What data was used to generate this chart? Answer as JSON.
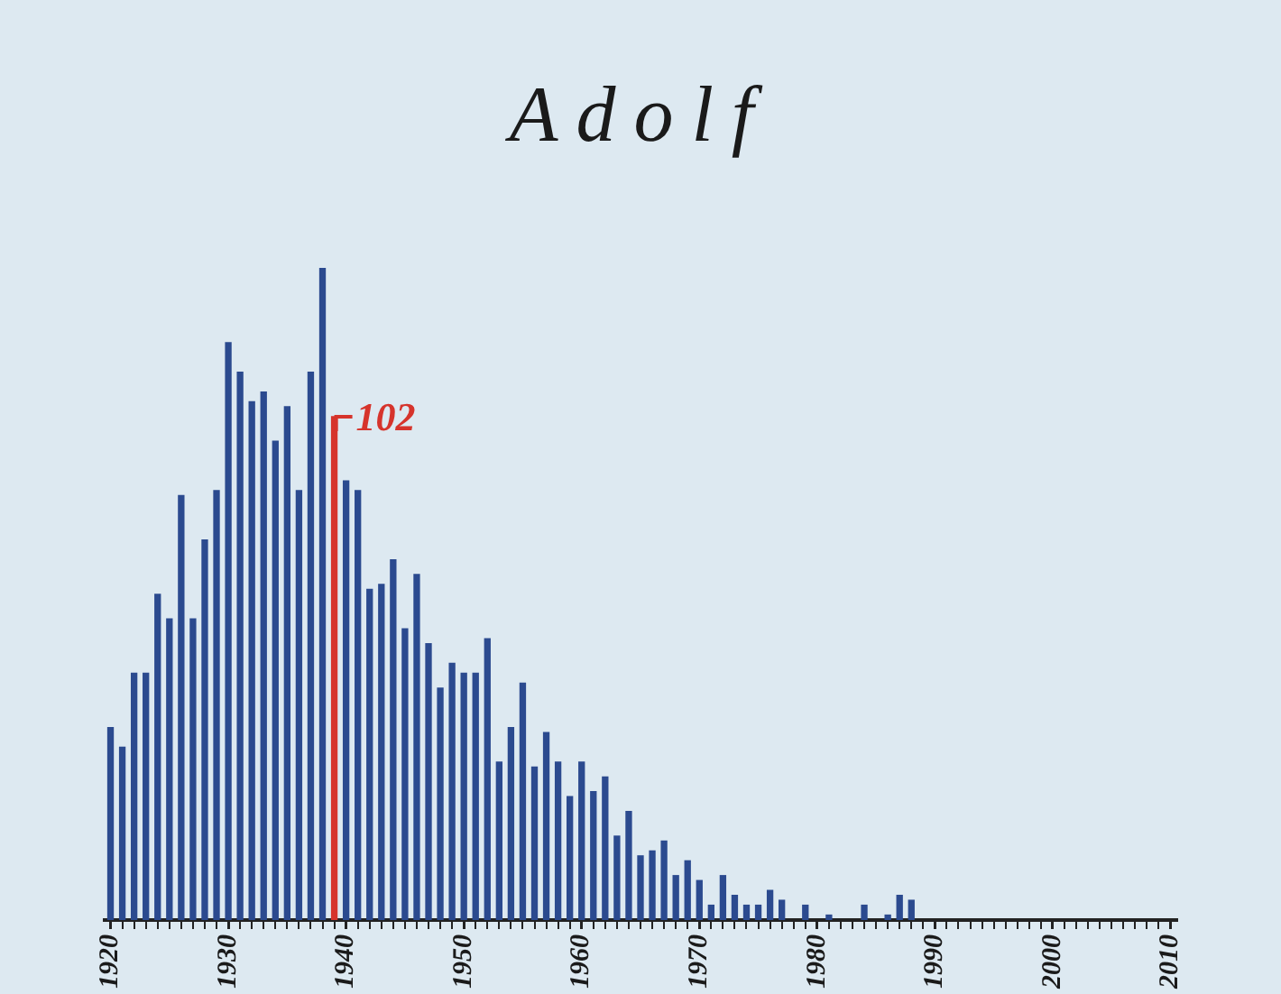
{
  "chart_data": {
    "type": "bar",
    "title": "Adolf",
    "categories": [
      "1920",
      null,
      null,
      null,
      null,
      null,
      null,
      null,
      null,
      null,
      "1930",
      null,
      null,
      null,
      null,
      null,
      null,
      null,
      null,
      null,
      "1940",
      null,
      null,
      null,
      null,
      null,
      null,
      null,
      null,
      null,
      "1950",
      null,
      null,
      null,
      null,
      null,
      null,
      null,
      null,
      null,
      "1960",
      null,
      null,
      null,
      null,
      null,
      null,
      null,
      null,
      null,
      "1970",
      null,
      null,
      null,
      null,
      null,
      null,
      null,
      null,
      null,
      "1980",
      null,
      null,
      null,
      null,
      null,
      null,
      null,
      null,
      null,
      "1990",
      null,
      null,
      null,
      null,
      null,
      null,
      null,
      null,
      null,
      "2000",
      null,
      null,
      null,
      null,
      null,
      null,
      null,
      null,
      null,
      "2010"
    ],
    "values": [
      39,
      35,
      50,
      50,
      66,
      61,
      86,
      61,
      77,
      87,
      117,
      111,
      105,
      107,
      97,
      104,
      87,
      111,
      132,
      102,
      89,
      87,
      67,
      68,
      73,
      59,
      70,
      56,
      47,
      52,
      50,
      50,
      57,
      32,
      39,
      48,
      31,
      38,
      32,
      25,
      32,
      26,
      29,
      17,
      22,
      13,
      14,
      16,
      9,
      12,
      8,
      3,
      9,
      5,
      3,
      3,
      6,
      4,
      null,
      3,
      null,
      1,
      null,
      null,
      3,
      null,
      1,
      5,
      4,
      null,
      null,
      null,
      null,
      null,
      null,
      null,
      null,
      null,
      null,
      null,
      null,
      null,
      null,
      null,
      null,
      null,
      null,
      null,
      null,
      null,
      null
    ],
    "colors": [
      "#2b4a8f",
      "#2b4a8f",
      "#2b4a8f",
      "#2b4a8f",
      "#2b4a8f",
      "#2b4a8f",
      "#2b4a8f",
      "#2b4a8f",
      "#2b4a8f",
      "#2b4a8f",
      "#2b4a8f",
      "#2b4a8f",
      "#2b4a8f",
      "#2b4a8f",
      "#2b4a8f",
      "#2b4a8f",
      "#2b4a8f",
      "#2b4a8f",
      "#2b4a8f",
      "#d6342c",
      "#2b4a8f",
      "#2b4a8f",
      "#2b4a8f",
      "#2b4a8f",
      "#2b4a8f",
      "#2b4a8f",
      "#2b4a8f",
      "#2b4a8f",
      "#2b4a8f",
      "#2b4a8f",
      "#2b4a8f",
      "#2b4a8f",
      "#2b4a8f",
      "#2b4a8f",
      "#2b4a8f",
      "#2b4a8f",
      "#2b4a8f",
      "#2b4a8f",
      "#2b4a8f",
      "#2b4a8f",
      "#2b4a8f",
      "#2b4a8f",
      "#2b4a8f",
      "#2b4a8f",
      "#2b4a8f",
      "#2b4a8f",
      "#2b4a8f",
      "#2b4a8f",
      "#2b4a8f",
      "#2b4a8f",
      "#2b4a8f",
      "#2b4a8f",
      "#2b4a8f",
      "#2b4a8f",
      "#2b4a8f",
      "#2b4a8f",
      "#2b4a8f",
      "#2b4a8f",
      "#2b4a8f",
      "#2b4a8f",
      "#2b4a8f",
      "#2b4a8f",
      "#2b4a8f",
      "#2b4a8f",
      "#2b4a8f",
      "#2b4a8f",
      "#2b4a8f",
      "#2b4a8f",
      "#2b4a8f",
      "#2b4a8f",
      "#2b4a8f",
      "#2b4a8f",
      "#2b4a8f",
      "#2b4a8f",
      "#2b4a8f",
      "#2b4a8f",
      "#2b4a8f",
      "#2b4a8f",
      "#2b4a8f",
      "#2b4a8f",
      "#2b4a8f",
      "#2b4a8f",
      "#2b4a8f",
      "#2b4a8f",
      "#2b4a8f",
      "#2b4a8f",
      "#2b4a8f",
      "#2b4a8f",
      "#2b4a8f",
      "#2b4a8f",
      "#2b4a8f"
    ],
    "value_labels": [
      null,
      null,
      null,
      null,
      null,
      null,
      null,
      null,
      null,
      null,
      null,
      null,
      null,
      null,
      null,
      null,
      null,
      null,
      null,
      "102",
      null,
      null,
      null,
      null,
      null,
      null,
      null,
      null,
      null,
      null,
      null,
      null,
      null,
      null,
      null,
      null,
      null,
      null,
      null,
      null,
      null,
      null,
      null,
      null,
      null,
      null,
      null,
      null,
      null,
      null,
      null,
      null,
      null,
      null,
      null,
      null,
      null,
      null,
      null,
      null,
      null,
      null,
      null,
      null,
      null,
      null,
      null,
      null,
      null,
      null,
      null,
      null,
      null,
      null,
      null,
      null,
      null,
      null,
      null,
      null,
      null,
      null,
      null,
      null,
      null,
      null,
      null,
      null,
      null,
      null,
      null
    ],
    "tick_labels": "x"
  }
}
